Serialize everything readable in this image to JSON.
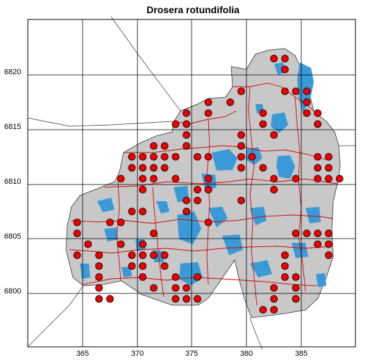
{
  "title": "Drosera rotundifolia",
  "map": {
    "x_ticks": [
      "365",
      "370",
      "375",
      "380",
      "385"
    ],
    "y_ticks": [
      "6820",
      "6815",
      "6810",
      "6805",
      "6800"
    ],
    "colors": {
      "region_fill": "#c8c8c8",
      "water": "#3a9ad8",
      "boundary": "#d40000",
      "record_dot": "#ee0000",
      "grid": "#000000"
    },
    "records": [
      [
        382.5,
        6821.5
      ],
      [
        383.5,
        6821.5
      ],
      [
        383.5,
        6820.5
      ],
      [
        379.5,
        6818.5
      ],
      [
        383.5,
        6818.5
      ],
      [
        384.5,
        6818.5
      ],
      [
        385.5,
        6818.5
      ],
      [
        376.5,
        6817.5
      ],
      [
        378.5,
        6817.5
      ],
      [
        385.5,
        6817.5
      ],
      [
        374.5,
        6816.5
      ],
      [
        376.5,
        6816.5
      ],
      [
        381.5,
        6816.5
      ],
      [
        385.5,
        6816.5
      ],
      [
        386.5,
        6816.5
      ],
      [
        373.5,
        6815.5
      ],
      [
        374.5,
        6815.5
      ],
      [
        381.5,
        6815.5
      ],
      [
        386.5,
        6815.5
      ],
      [
        374.5,
        6814.5
      ],
      [
        379.5,
        6814.5
      ],
      [
        382.5,
        6814.5
      ],
      [
        371.5,
        6813.5
      ],
      [
        372.5,
        6813.5
      ],
      [
        374.5,
        6813.5
      ],
      [
        379.5,
        6813.5
      ],
      [
        369.5,
        6812.5
      ],
      [
        370.5,
        6812.5
      ],
      [
        371.5,
        6812.5
      ],
      [
        372.5,
        6812.5
      ],
      [
        373.5,
        6812.5
      ],
      [
        375.5,
        6812.5
      ],
      [
        376.5,
        6812.5
      ],
      [
        379.5,
        6812.5
      ],
      [
        380.5,
        6812.5
      ],
      [
        386.5,
        6812.5
      ],
      [
        387.5,
        6812.5
      ],
      [
        369.5,
        6811.5
      ],
      [
        370.5,
        6811.5
      ],
      [
        371.5,
        6811.5
      ],
      [
        372.5,
        6811.5
      ],
      [
        379.5,
        6811.5
      ],
      [
        381.5,
        6811.5
      ],
      [
        386.5,
        6811.5
      ],
      [
        387.5,
        6811.5
      ],
      [
        368.5,
        6810.5
      ],
      [
        370.5,
        6810.5
      ],
      [
        371.5,
        6810.5
      ],
      [
        373.5,
        6810.5
      ],
      [
        376.5,
        6810.5
      ],
      [
        382.5,
        6810.5
      ],
      [
        384.5,
        6810.5
      ],
      [
        386.5,
        6810.5
      ],
      [
        387.5,
        6810.5
      ],
      [
        388.5,
        6810.5
      ],
      [
        370.5,
        6809.5
      ],
      [
        375.5,
        6809.5
      ],
      [
        376.5,
        6809.5
      ],
      [
        382.5,
        6809.5
      ],
      [
        374.5,
        6808.5
      ],
      [
        375.5,
        6808.5
      ],
      [
        379.5,
        6808.5
      ],
      [
        369.5,
        6807.5
      ],
      [
        370.5,
        6807.5
      ],
      [
        374.5,
        6807.5
      ],
      [
        364.5,
        6806.5
      ],
      [
        367.5,
        6806.5
      ],
      [
        368.5,
        6806.5
      ],
      [
        376.5,
        6806.5
      ],
      [
        364.5,
        6805.5
      ],
      [
        371.5,
        6805.5
      ],
      [
        384.5,
        6805.5
      ],
      [
        385.5,
        6805.5
      ],
      [
        386.5,
        6805.5
      ],
      [
        387.5,
        6805.5
      ],
      [
        365.5,
        6804.5
      ],
      [
        368.5,
        6804.5
      ],
      [
        370.5,
        6804.5
      ],
      [
        386.5,
        6804.5
      ],
      [
        387.5,
        6804.5
      ],
      [
        364.5,
        6803.5
      ],
      [
        366.5,
        6803.5
      ],
      [
        369.5,
        6803.5
      ],
      [
        370.5,
        6803.5
      ],
      [
        371.5,
        6803.5
      ],
      [
        372.5,
        6803.5
      ],
      [
        383.5,
        6803.5
      ],
      [
        387.5,
        6803.5
      ],
      [
        366.5,
        6802.5
      ],
      [
        369.5,
        6802.5
      ],
      [
        370.5,
        6802.5
      ],
      [
        372.5,
        6802.5
      ],
      [
        383.5,
        6802.5
      ],
      [
        366.5,
        6801.5
      ],
      [
        370.5,
        6801.5
      ],
      [
        373.5,
        6801.5
      ],
      [
        375.5,
        6801.5
      ],
      [
        383.5,
        6801.5
      ],
      [
        384.5,
        6801.5
      ],
      [
        366.5,
        6800.5
      ],
      [
        371.5,
        6800.5
      ],
      [
        373.5,
        6800.5
      ],
      [
        374.5,
        6800.5
      ],
      [
        382.5,
        6800.5
      ],
      [
        384.5,
        6800.5
      ],
      [
        366.5,
        6799.5
      ],
      [
        367.5,
        6799.5
      ],
      [
        373.5,
        6799.5
      ],
      [
        374.5,
        6799.5
      ],
      [
        375.5,
        6799.5
      ],
      [
        382.5,
        6799.5
      ],
      [
        384.5,
        6799.5
      ],
      [
        381.5,
        6798.5
      ],
      [
        382.5,
        6798.5
      ]
    ]
  }
}
